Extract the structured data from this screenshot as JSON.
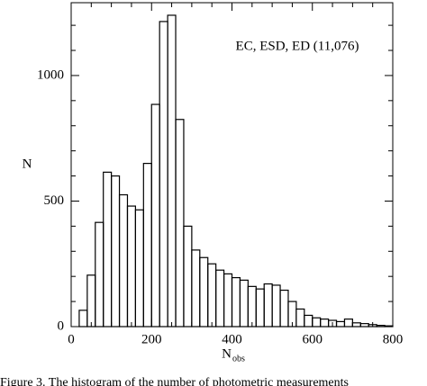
{
  "chart_data": {
    "type": "histogram",
    "annotation": "EC, ESD, ED (11,076)",
    "xlabel": "N",
    "xlabel_sub": "obs",
    "ylabel": "N",
    "caption": "Figure 3. The histogram of the number of photometric measurements",
    "bins": [
      20,
      40,
      60,
      80,
      100,
      120,
      140,
      160,
      180,
      200,
      220,
      240,
      260,
      280,
      300,
      320,
      340,
      360,
      380,
      400,
      420,
      440,
      460,
      480,
      500,
      520,
      540,
      560,
      580,
      600,
      620,
      640,
      660,
      680,
      700,
      720,
      740,
      760,
      780,
      800
    ],
    "values": [
      65,
      205,
      415,
      615,
      600,
      525,
      480,
      465,
      650,
      885,
      1215,
      1240,
      825,
      400,
      305,
      275,
      250,
      225,
      210,
      195,
      185,
      160,
      150,
      170,
      165,
      145,
      100,
      70,
      45,
      35,
      30,
      25,
      20,
      30,
      15,
      12,
      8,
      5,
      3
    ],
    "color": "#000000",
    "xlim": [
      0,
      800
    ],
    "ylim": [
      0,
      1290
    ],
    "xticks": [
      0,
      200,
      400,
      600,
      800
    ],
    "yticks": [
      0,
      500,
      1000
    ],
    "xticks_minor": [
      50,
      100,
      150,
      250,
      300,
      350,
      450,
      500,
      550,
      650,
      700,
      750
    ],
    "yticks_minor": [
      100,
      200,
      300,
      400,
      600,
      700,
      800,
      900,
      1100,
      1200
    ]
  }
}
